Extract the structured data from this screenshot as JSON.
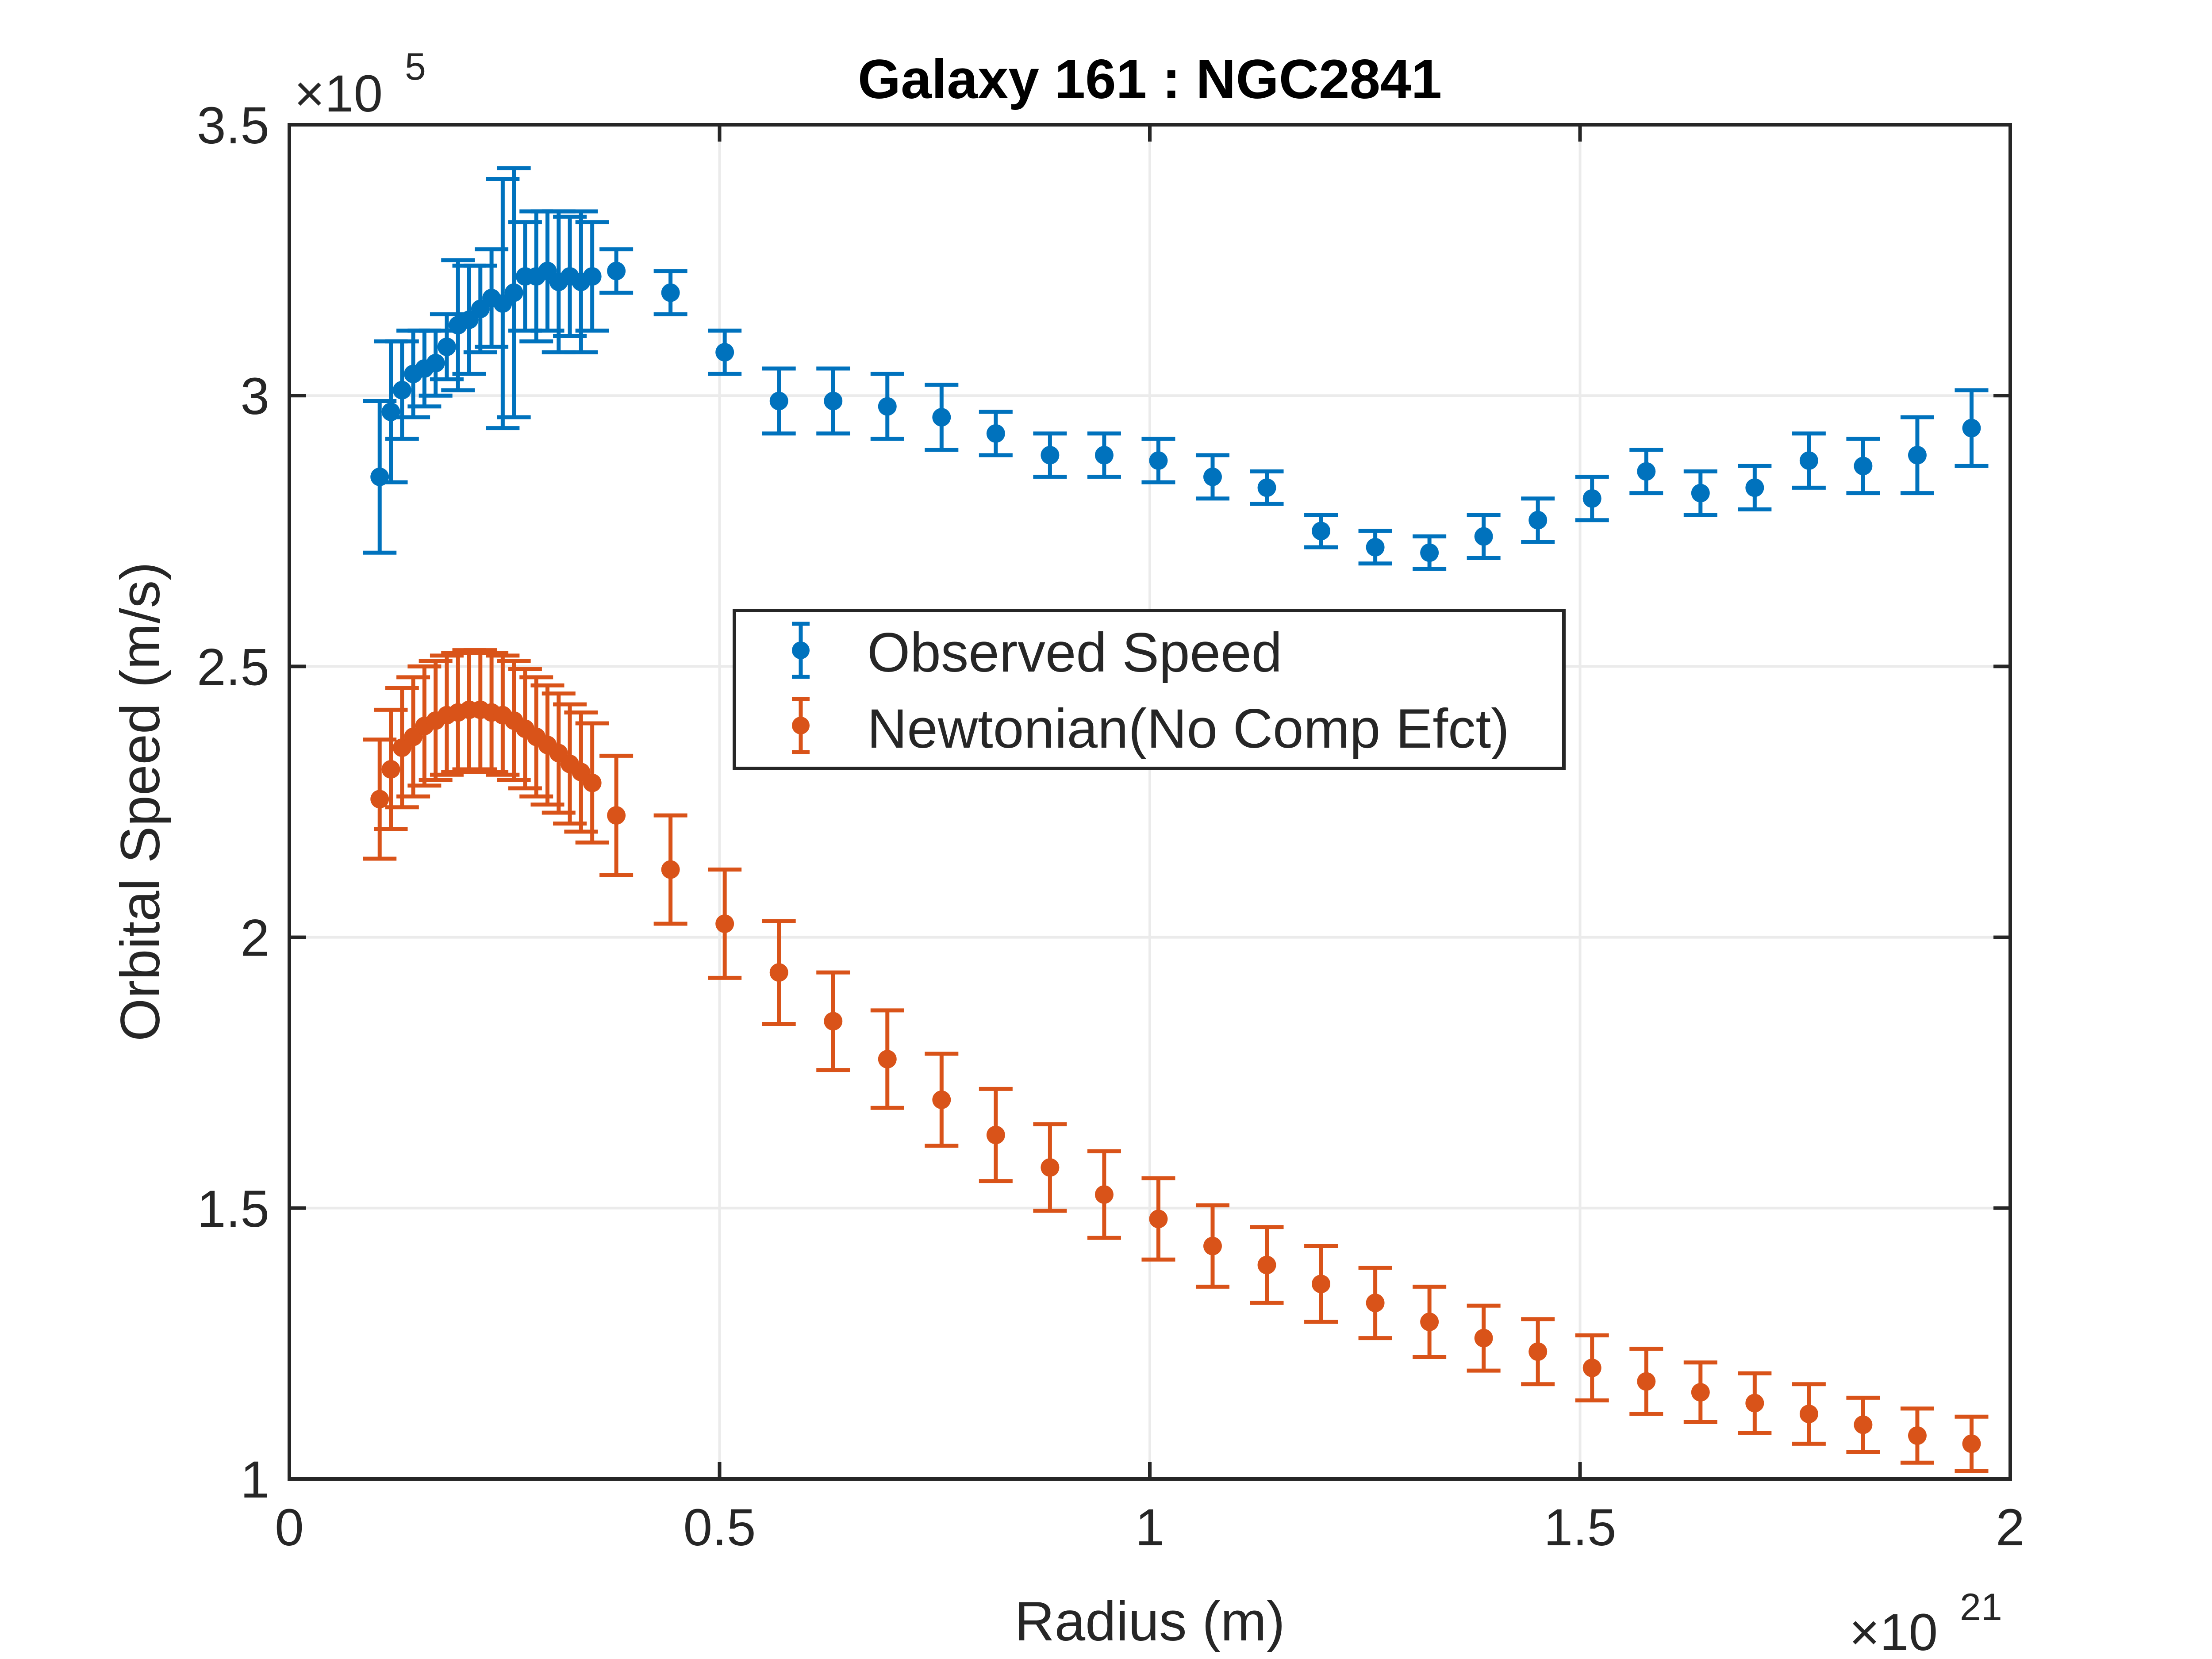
{
  "chart_data": {
    "type": "scatter",
    "title": "Galaxy 161 : NGC2841",
    "xlabel": "Radius (m)",
    "ylabel": "Orbital Speed (m/s)",
    "x_exponent_label": "×10",
    "x_exponent": "21",
    "y_exponent_label": "×10",
    "y_exponent": "5",
    "x_scale": 1e+21,
    "y_scale": 100000.0,
    "xlim": [
      0,
      2
    ],
    "ylim": [
      1,
      3.5
    ],
    "xticks": [
      0,
      0.5,
      1,
      1.5,
      2
    ],
    "xtick_labels": [
      "0",
      "0.5",
      "1",
      "1.5",
      "2"
    ],
    "yticks": [
      1,
      1.5,
      2,
      2.5,
      3,
      3.5
    ],
    "ytick_labels": [
      "1",
      "1.5",
      "2",
      "2.5",
      "3",
      "3.5"
    ],
    "grid": true,
    "legend_position": "center",
    "series": [
      {
        "name": "Observed Speed",
        "color": "#0072BD",
        "x": [
          0.105,
          0.118,
          0.131,
          0.144,
          0.157,
          0.17,
          0.183,
          0.196,
          0.209,
          0.222,
          0.235,
          0.248,
          0.261,
          0.274,
          0.287,
          0.3,
          0.313,
          0.326,
          0.339,
          0.352,
          0.38,
          0.443,
          0.506,
          0.569,
          0.632,
          0.695,
          0.758,
          0.821,
          0.884,
          0.947,
          1.01,
          1.073,
          1.136,
          1.199,
          1.262,
          1.325,
          1.388,
          1.451,
          1.514,
          1.577,
          1.64,
          1.703,
          1.766,
          1.829,
          1.892,
          1.955
        ],
        "y": [
          2.85,
          2.97,
          3.01,
          3.04,
          3.05,
          3.06,
          3.09,
          3.13,
          3.14,
          3.16,
          3.18,
          3.17,
          3.19,
          3.22,
          3.22,
          3.23,
          3.21,
          3.22,
          3.21,
          3.22,
          3.23,
          3.19,
          3.08,
          2.99,
          2.99,
          2.98,
          2.96,
          2.93,
          2.89,
          2.89,
          2.88,
          2.85,
          2.83,
          2.75,
          2.72,
          2.71,
          2.74,
          2.77,
          2.81,
          2.86,
          2.82,
          2.83,
          2.88,
          2.87,
          2.89,
          2.94
        ],
        "err": [
          0.14,
          0.13,
          0.09,
          0.08,
          0.07,
          0.06,
          0.06,
          0.12,
          0.1,
          0.08,
          0.09,
          0.23,
          0.23,
          0.1,
          0.12,
          0.11,
          0.13,
          0.11,
          0.13,
          0.1,
          0.04,
          0.04,
          0.04,
          0.06,
          0.06,
          0.06,
          0.06,
          0.04,
          0.04,
          0.04,
          0.04,
          0.04,
          0.03,
          0.03,
          0.03,
          0.03,
          0.04,
          0.04,
          0.04,
          0.04,
          0.04,
          0.04,
          0.05,
          0.05,
          0.07,
          0.07
        ]
      },
      {
        "name": "Newtonian(No Comp Efct)",
        "color": "#D95319",
        "x": [
          0.105,
          0.118,
          0.131,
          0.144,
          0.157,
          0.17,
          0.183,
          0.196,
          0.209,
          0.222,
          0.235,
          0.248,
          0.261,
          0.274,
          0.287,
          0.3,
          0.313,
          0.326,
          0.339,
          0.352,
          0.38,
          0.443,
          0.506,
          0.569,
          0.632,
          0.695,
          0.758,
          0.821,
          0.884,
          0.947,
          1.01,
          1.073,
          1.136,
          1.199,
          1.262,
          1.325,
          1.388,
          1.451,
          1.514,
          1.577,
          1.64,
          1.703,
          1.766,
          1.829,
          1.892,
          1.955
        ],
        "y": [
          2.255,
          2.31,
          2.35,
          2.37,
          2.39,
          2.4,
          2.41,
          2.415,
          2.42,
          2.42,
          2.415,
          2.41,
          2.4,
          2.385,
          2.37,
          2.355,
          2.34,
          2.32,
          2.305,
          2.285,
          2.225,
          2.125,
          2.025,
          1.935,
          1.845,
          1.775,
          1.7,
          1.635,
          1.575,
          1.525,
          1.48,
          1.43,
          1.395,
          1.36,
          1.325,
          1.29,
          1.26,
          1.235,
          1.205,
          1.18,
          1.16,
          1.14,
          1.12,
          1.1,
          1.08,
          1.065
        ],
        "err": [
          0.11,
          0.11,
          0.11,
          0.11,
          0.11,
          0.11,
          0.11,
          0.11,
          0.11,
          0.11,
          0.11,
          0.11,
          0.11,
          0.11,
          0.11,
          0.11,
          0.11,
          0.11,
          0.11,
          0.11,
          0.11,
          0.1,
          0.1,
          0.095,
          0.09,
          0.09,
          0.085,
          0.085,
          0.08,
          0.08,
          0.075,
          0.075,
          0.07,
          0.07,
          0.065,
          0.065,
          0.06,
          0.06,
          0.06,
          0.06,
          0.055,
          0.055,
          0.055,
          0.05,
          0.05,
          0.05
        ]
      }
    ]
  }
}
